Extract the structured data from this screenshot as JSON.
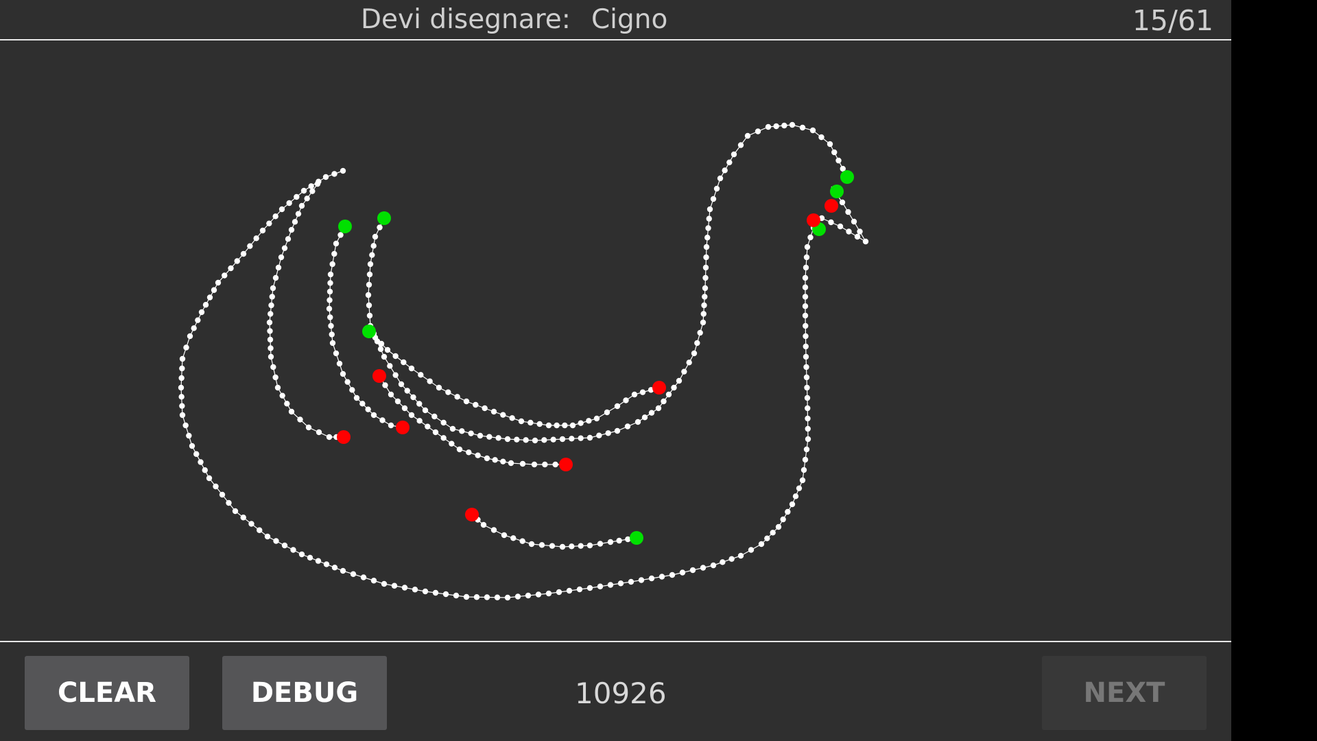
{
  "header": {
    "prompt_label": "Devi disegnare:",
    "target_word": "Cigno",
    "progress": "15/61"
  },
  "footer": {
    "clear_label": "CLEAR",
    "debug_label": "DEBUG",
    "score": "10926",
    "next_label": "NEXT"
  },
  "colors": {
    "background": "#2f2f2f",
    "stroke": "#ffffff",
    "start_dot": "#00e000",
    "end_dot": "#ff0000",
    "button": "#555557",
    "button_disabled": "#383838"
  }
}
